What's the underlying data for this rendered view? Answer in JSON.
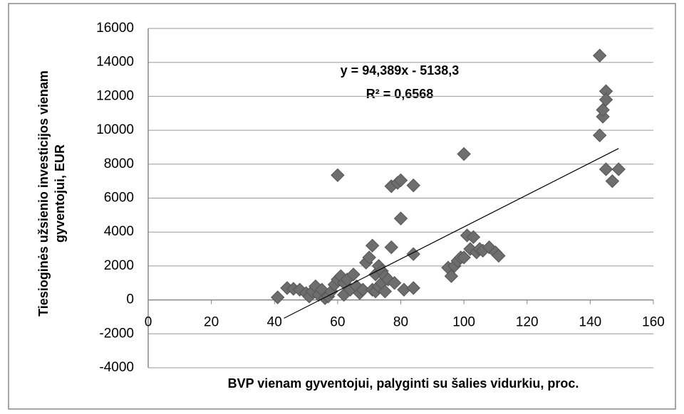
{
  "chart_data": {
    "type": "scatter",
    "x_label": "BVP vienam gyventojui, palyginti su šalies vidurkiu, proc.",
    "y_label": [
      "Tiesioginės užsienio investicijos vienam",
      "gyventojui, EUR"
    ],
    "annotations": [
      "y = 94,389x - 5138,3",
      "R² = 0,6568"
    ],
    "xlim": [
      0,
      160
    ],
    "xticks": [
      0,
      20,
      40,
      60,
      80,
      100,
      120,
      140,
      160
    ],
    "ylim": [
      -4000,
      16000
    ],
    "yticks": [
      -4000,
      -2000,
      0,
      2000,
      4000,
      6000,
      8000,
      10000,
      12000,
      14000,
      16000
    ],
    "grid": true,
    "color": "#6e6e6e",
    "x": [
      41,
      44,
      46,
      48,
      50,
      51,
      52,
      53,
      54,
      55,
      56,
      57,
      58,
      59,
      60,
      60,
      61,
      62,
      62,
      63,
      64,
      65,
      66,
      67,
      68,
      69,
      70,
      71,
      71,
      72,
      72,
      73,
      73,
      74,
      74,
      75,
      75,
      76,
      77,
      77,
      78,
      79,
      80,
      80,
      81,
      84,
      84,
      84,
      95,
      96,
      97,
      98,
      99,
      100,
      100,
      101,
      102,
      103,
      104,
      105,
      106,
      108,
      110,
      111,
      143,
      143,
      144,
      144,
      145,
      145,
      145,
      147,
      149
    ],
    "values": [
      150,
      700,
      650,
      600,
      400,
      200,
      500,
      800,
      300,
      600,
      100,
      200,
      500,
      900,
      7350,
      1200,
      1400,
      300,
      1000,
      1200,
      600,
      1500,
      800,
      400,
      600,
      2200,
      2500,
      600,
      3200,
      1500,
      500,
      2000,
      800,
      1000,
      1700,
      500,
      1400,
      1200,
      3100,
      6700,
      1000,
      6900,
      7050,
      4800,
      600,
      6750,
      2700,
      700,
      1900,
      1400,
      2000,
      2300,
      2500,
      8600,
      2500,
      3800,
      3000,
      3700,
      2800,
      3000,
      2900,
      3100,
      2800,
      2600,
      14400,
      9700,
      10800,
      11200,
      12300,
      11800,
      7700,
      7000,
      7700
    ],
    "trendline": {
      "x": [
        43,
        149
      ],
      "values": [
        -1080,
        8926
      ]
    }
  }
}
